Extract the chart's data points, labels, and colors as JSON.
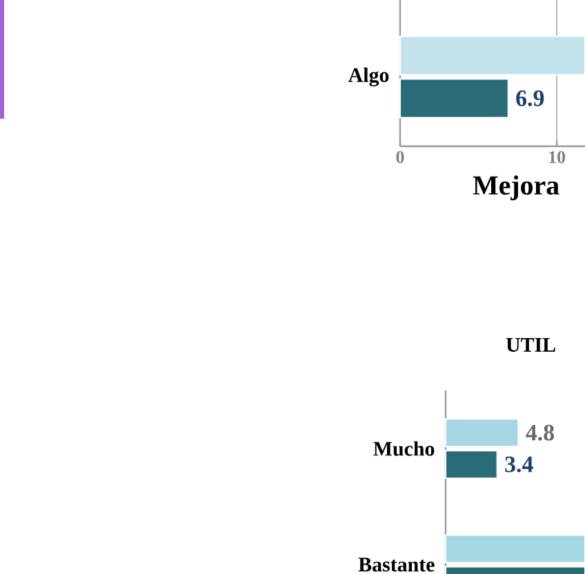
{
  "chart_data": [
    {
      "type": "bar",
      "orientation": "horizontal",
      "categories": [
        "Algo"
      ],
      "xlabel": "Mejora",
      "xlim": [
        0,
        11.8
      ],
      "xticks": [
        0,
        10
      ],
      "grid": "x",
      "series": [
        {
          "color": "#c2e3ec",
          "values": [
            11.8
          ],
          "value_labels": [
            null
          ]
        },
        {
          "color": "#2a6b78",
          "values": [
            6.9
          ],
          "value_labels": [
            "6.9"
          ]
        }
      ]
    },
    {
      "type": "bar",
      "orientation": "horizontal",
      "title": "UTIL",
      "categories": [
        "Mucho",
        "Bastante"
      ],
      "xlim": [
        0,
        9.2
      ],
      "tick_labels": "y",
      "series": [
        {
          "color": "#a6d7e4",
          "values": [
            4.8,
            9.2
          ],
          "value_labels": [
            "4.8",
            null
          ]
        },
        {
          "color": "#2a6b78",
          "values": [
            3.4,
            9.2
          ],
          "value_labels": [
            "3.4",
            null
          ]
        }
      ]
    }
  ]
}
